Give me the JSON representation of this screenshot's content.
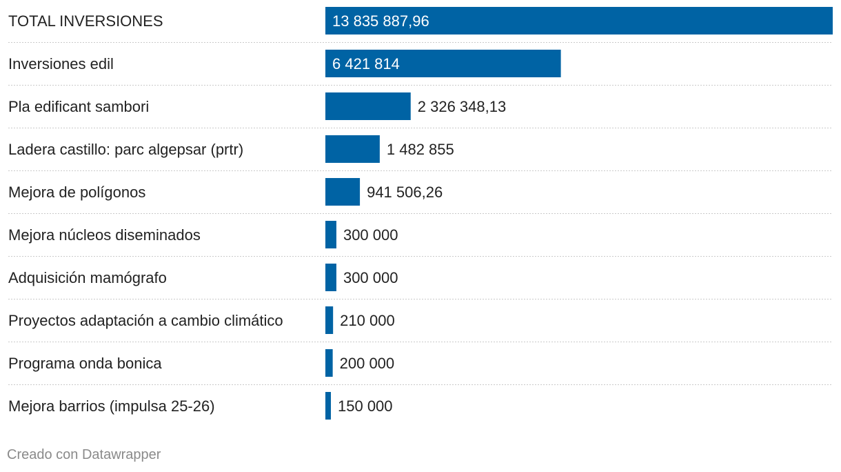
{
  "chart_data": {
    "type": "bar",
    "orientation": "horizontal",
    "categories": [
      "TOTAL INVERSIONES",
      "Inversiones edil",
      "Pla edificant sambori",
      "Ladera castillo: parc algepsar (prtr)",
      "Mejora de polígonos",
      "Mejora núcleos diseminados",
      "Adquisición mamógrafo",
      "Proyectos adaptación a cambio climático",
      "Programa onda bonica",
      "Mejora barrios (impulsa 25-26)"
    ],
    "values": [
      13835887.96,
      6421814,
      2326348.13,
      1482855,
      941506.26,
      300000,
      300000,
      210000,
      200000,
      150000
    ],
    "value_labels": [
      "13 835 887,96",
      "6 421 814",
      "2 326 348,13",
      "1 482 855",
      "941 506,26",
      "300 000",
      "300 000",
      "210 000",
      "200 000",
      "150 000"
    ],
    "xlim": [
      0,
      13835887.96
    ],
    "bar_color": "#0063a4",
    "grid": false,
    "legend": "none",
    "title": "",
    "xlabel": "",
    "ylabel": ""
  },
  "footer": {
    "credit": "Creado con Datawrapper"
  },
  "colors": {
    "bar": "#0063a4",
    "label_inside": "#ffffff",
    "label_outside": "#222222",
    "separator": "#c9c9c9",
    "footer": "#8a8a8a"
  }
}
